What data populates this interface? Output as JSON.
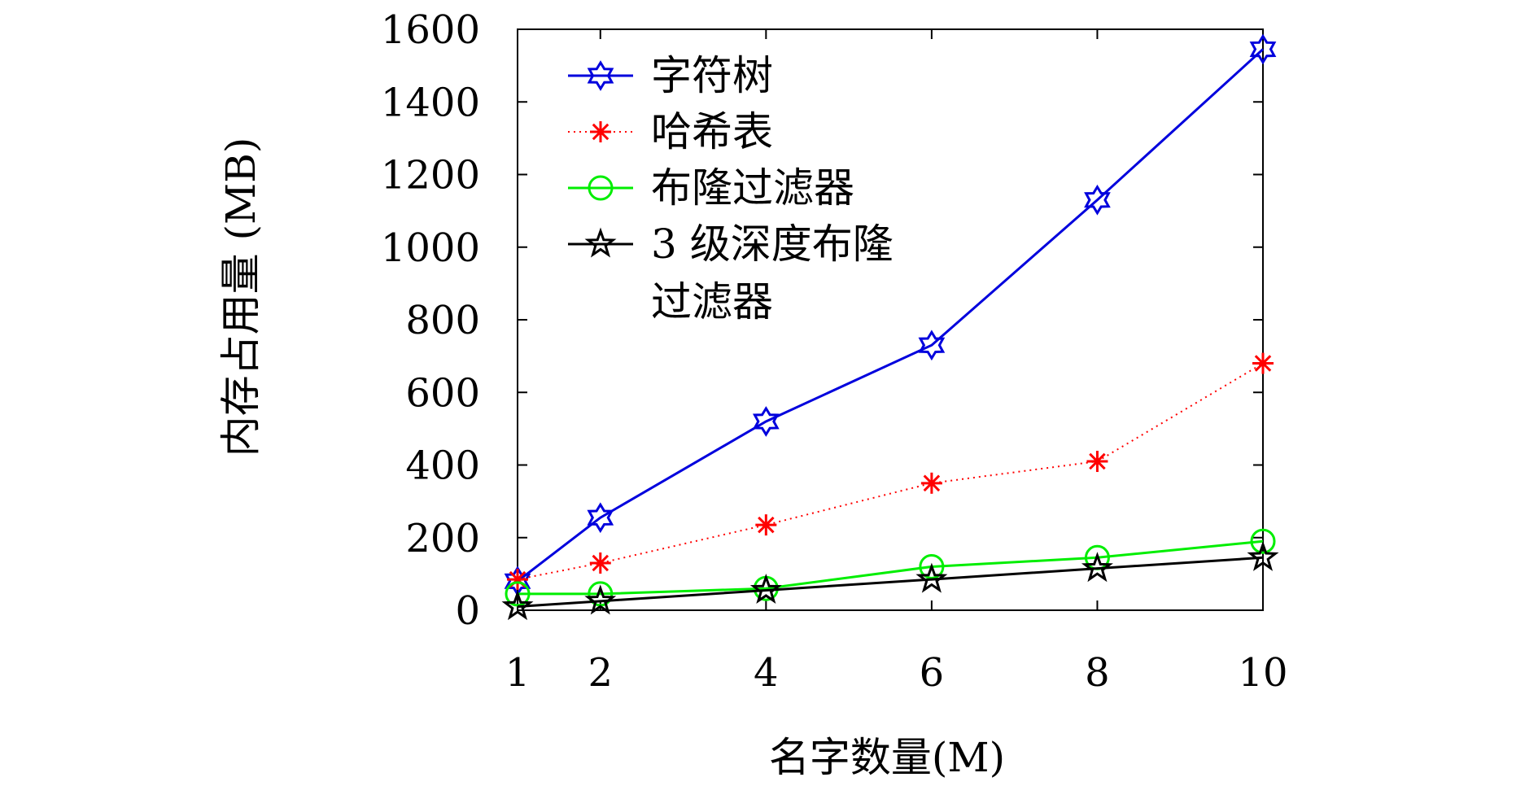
{
  "chart_data": {
    "type": "line",
    "title": "",
    "xlabel": "名字数量(M)",
    "ylabel": "内存占用量 (MB)",
    "x": [
      1,
      2,
      4,
      6,
      8,
      10
    ],
    "x_ticks": [
      "1",
      "2",
      "4",
      "6",
      "8",
      "10"
    ],
    "y_ticks": [
      "0",
      "200",
      "400",
      "600",
      "800",
      "1000",
      "1200",
      "1400",
      "1600"
    ],
    "xlim": [
      1,
      10
    ],
    "ylim": [
      0,
      1600
    ],
    "grid": false,
    "legend_position": "top-left",
    "series": [
      {
        "name": "字符树",
        "legend_lines": [
          "字符树"
        ],
        "values": [
          80,
          255,
          520,
          730,
          1130,
          1545
        ],
        "color": "#0000dd",
        "line_style": "solid",
        "marker": "hexagram"
      },
      {
        "name": "哈希表",
        "legend_lines": [
          "哈希表"
        ],
        "values": [
          85,
          130,
          235,
          350,
          410,
          680
        ],
        "color": "#ff0000",
        "line_style": "dotted",
        "marker": "asterisk"
      },
      {
        "name": "布隆过滤器",
        "legend_lines": [
          "布隆过滤器"
        ],
        "values": [
          45,
          45,
          60,
          120,
          145,
          190
        ],
        "color": "#00ee00",
        "line_style": "solid",
        "marker": "circle"
      },
      {
        "name": "3 级深度布隆过滤器",
        "legend_lines": [
          "3 级深度布隆",
          "过滤器"
        ],
        "values": [
          10,
          25,
          55,
          85,
          115,
          145
        ],
        "color": "#000000",
        "line_style": "solid",
        "marker": "star"
      }
    ]
  }
}
